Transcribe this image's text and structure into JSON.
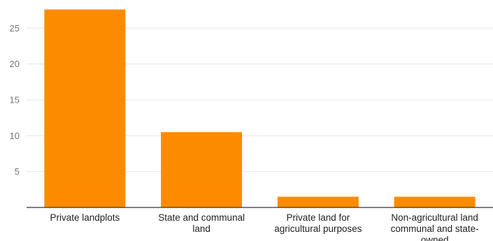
{
  "chart_data": {
    "type": "bar",
    "categories": [
      [
        "Private landplots"
      ],
      [
        "State and communal",
        "land"
      ],
      [
        "Private land for",
        "agricultural purposes"
      ],
      [
        "Non-agricultural land",
        "communal and state-",
        "owned"
      ]
    ],
    "values": [
      27.6,
      10.5,
      1.5,
      1.5
    ],
    "ylim": [
      0,
      28.5
    ],
    "yticks": [
      5,
      10,
      15,
      20,
      25
    ],
    "grid": true,
    "bar_color": "#FB8C00",
    "grid_color": "#E6E6E6",
    "axis_color": "#333333"
  }
}
